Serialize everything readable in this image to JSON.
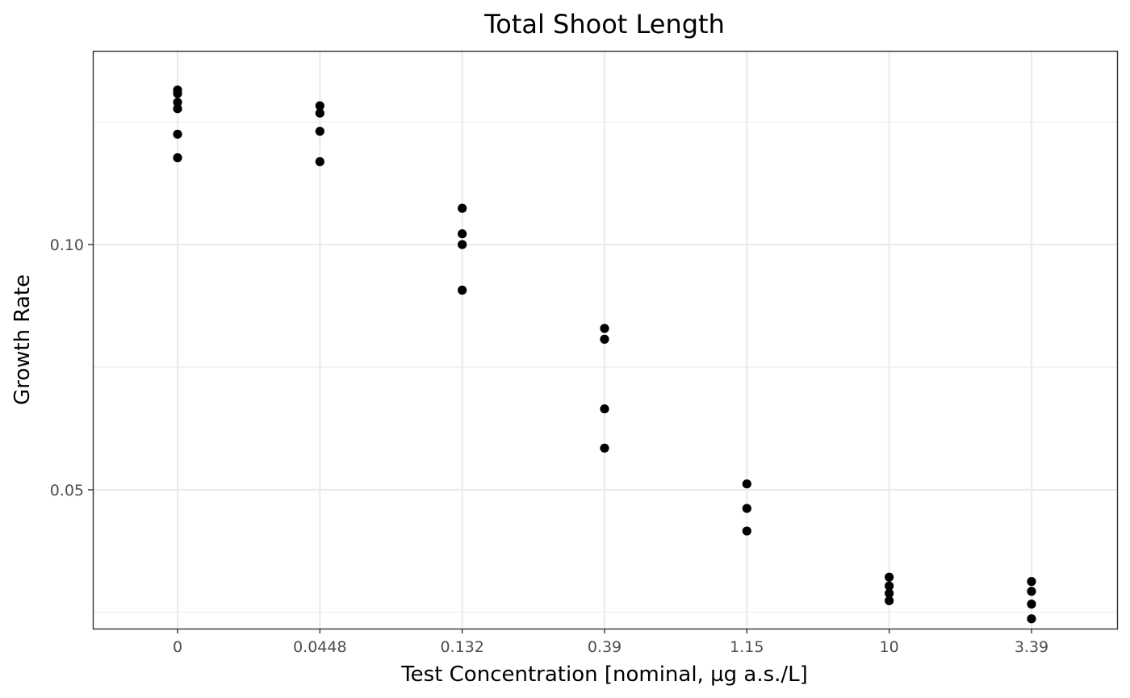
{
  "chart_data": {
    "type": "scatter",
    "title": "Total Shoot Length",
    "xlabel": "Test Concentration [nominal, µg a.s./L]",
    "ylabel": "Growth Rate",
    "categories": [
      "0",
      "0.0448",
      "0.132",
      "0.39",
      "1.15",
      "10",
      "3.39"
    ],
    "yticks": [
      {
        "value": 0.1,
        "label": "0.10"
      },
      {
        "value": 0.05,
        "label": "0.05"
      }
    ],
    "yminor": [
      0.125,
      0.075,
      0.025
    ],
    "ylim": [
      0.0217,
      0.1395
    ],
    "grid": true,
    "series": [
      {
        "category": "0",
        "values": [
          0.1315,
          0.1308,
          0.129,
          0.1277,
          0.1225,
          0.1177
        ]
      },
      {
        "category": "0.0448",
        "values": [
          0.1283,
          0.1268,
          0.1231,
          0.1169
        ]
      },
      {
        "category": "0.132",
        "values": [
          0.1074,
          0.1022,
          0.1,
          0.0907
        ]
      },
      {
        "category": "0.39",
        "values": [
          0.0829,
          0.0807,
          0.0665,
          0.0585
        ]
      },
      {
        "category": "1.15",
        "values": [
          0.0512,
          0.0462,
          0.0416
        ]
      },
      {
        "category": "10",
        "values": [
          0.0322,
          0.0304,
          0.0289,
          0.0274
        ]
      },
      {
        "category": "3.39",
        "values": [
          0.0313,
          0.0293,
          0.0267,
          0.0237
        ]
      }
    ]
  }
}
